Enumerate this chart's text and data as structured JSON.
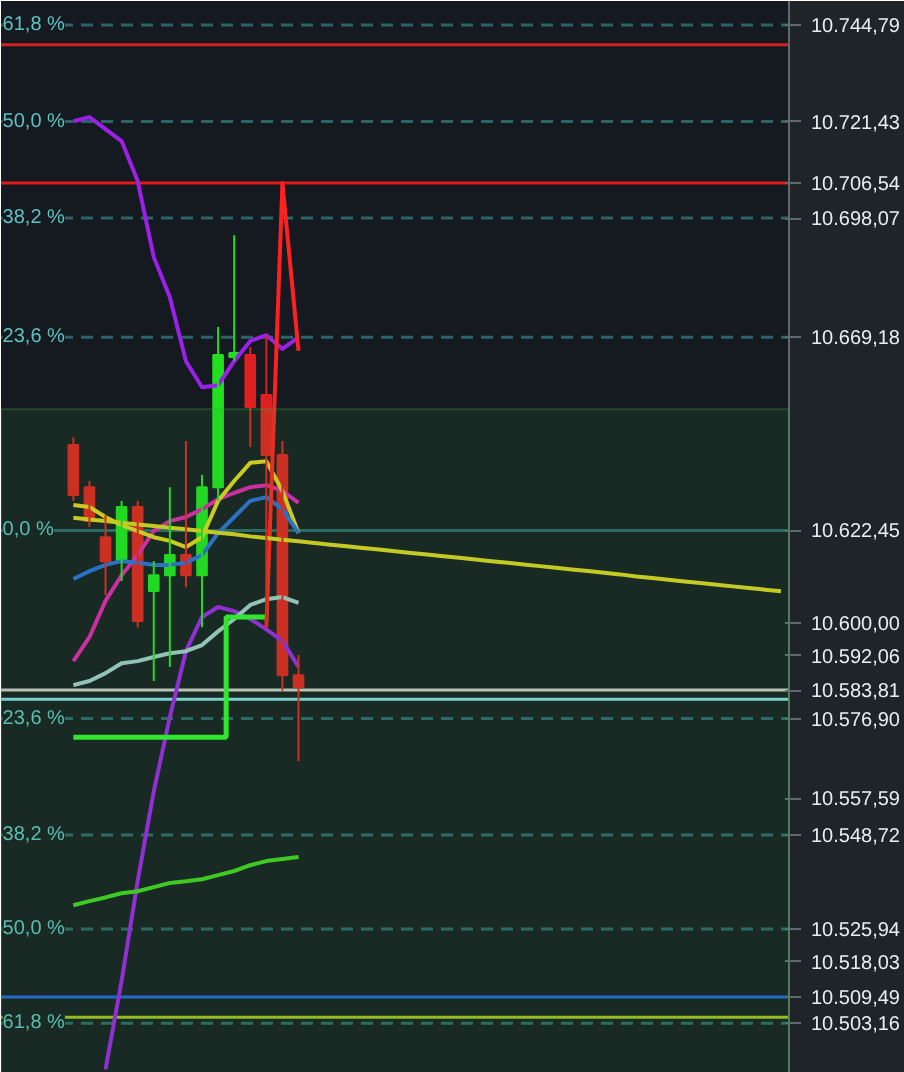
{
  "chart_data": {
    "type": "candlestick",
    "categories": [
      null,
      null,
      null,
      null,
      null,
      null,
      null,
      null,
      null,
      null,
      null,
      null,
      null,
      null,
      null,
      null,
      null,
      null,
      null,
      null,
      null,
      null,
      null,
      null,
      null,
      null,
      null,
      null,
      null,
      null,
      null,
      null,
      null,
      null,
      null,
      null,
      null,
      null,
      null,
      null,
      null,
      null,
      null,
      null,
      null
    ],
    "ohlc": [
      [
        10643.1,
        10645.0,
        10629.6,
        10631.0
      ],
      [
        10632.9,
        10634.4,
        10623.3,
        10624.7
      ],
      [
        10620.8,
        10626.2,
        10606.8,
        10615.0
      ],
      [
        10615.0,
        10629.6,
        10610.2,
        10628.1
      ],
      [
        10628.1,
        10629.6,
        10599.0,
        10600.5
      ],
      [
        10607.8,
        10615.0,
        10586.0,
        10611.6
      ],
      [
        10611.6,
        10632.9,
        10589.4,
        10616.5
      ],
      [
        10616.5,
        10644.1,
        10608.7,
        10611.6
      ],
      [
        10611.6,
        10635.9,
        10599.0,
        10632.9
      ],
      [
        10632.9,
        10671.7,
        10629.6,
        10664.9
      ],
      [
        10664.4,
        10693.9,
        10663.5,
        10665.4
      ],
      [
        10664.9,
        10666.8,
        10642.6,
        10652.3
      ],
      [
        10655.2,
        10669.7,
        10599.0,
        10640.7
      ],
      [
        10640.7,
        10644.1,
        10583.6,
        10587.4
      ],
      [
        10587.4,
        10592.3,
        10566.6,
        10584.5
      ],
      null,
      null,
      null,
      null,
      null,
      null,
      null,
      null,
      null,
      null,
      null,
      null,
      null,
      null,
      null,
      null,
      null,
      null,
      null,
      null,
      null,
      null,
      null,
      null,
      null,
      null,
      null,
      null,
      null,
      null
    ],
    "colors": [
      "#e02020",
      "#e02020",
      "#e02020",
      "#20e020",
      "#e02020",
      "#20e020",
      "#20e020",
      "#e02020",
      "#20e020",
      "#20e020",
      "#20e020",
      "#e02020",
      "#e02020",
      "#e02020",
      "#e02020",
      null,
      null,
      null,
      null,
      null,
      null,
      null,
      null,
      null,
      null,
      null,
      null,
      null,
      null,
      null,
      null,
      null,
      null,
      null,
      null,
      null,
      null,
      null,
      null,
      null,
      null,
      null,
      null,
      null,
      null
    ],
    "series": [
      {
        "type": "line",
        "color": "#9b20e8",
        "values": [
          10721.5,
          10722.5,
          10719.6,
          10716.7,
          10707.0,
          10688.6,
          10678.9,
          10663.4,
          10657.1,
          10657.6,
          10663.4,
          10668.3,
          10669.7,
          10666.4,
          10669.2,
          null,
          null,
          null,
          null,
          null,
          null,
          null,
          null,
          null,
          null,
          null,
          null,
          null,
          null,
          null,
          null,
          null,
          null,
          null,
          null,
          null,
          null,
          null,
          null,
          null,
          null,
          null,
          null,
          null,
          null
        ]
      },
      {
        "type": "line",
        "color": "#9b20e8",
        "values": [
          null,
          null,
          10492.0,
          10513.4,
          10537.6,
          10559.3,
          10577.3,
          10593.2,
          10601.5,
          10603.9,
          10602.9,
          10601.0,
          10598.5,
          10595.7,
          10589.4,
          null,
          null,
          null,
          null,
          null,
          null,
          null,
          null,
          null,
          null,
          null,
          null,
          null,
          null,
          null,
          null,
          null,
          null,
          null,
          null,
          null,
          null,
          null,
          null,
          null,
          null,
          null,
          null,
          null,
          null
        ]
      },
      {
        "type": "line",
        "color": "#e020b0",
        "values": [
          10590.8,
          10596.6,
          10605.4,
          10611.6,
          10616.5,
          10622.3,
          10624.7,
          10625.7,
          10627.6,
          10630.0,
          10631.5,
          10632.9,
          10633.4,
          10632.0,
          10629.1,
          null,
          null,
          null,
          null,
          null,
          null,
          null,
          null,
          null,
          null,
          null,
          null,
          null,
          null,
          null,
          null,
          null,
          null,
          null,
          null,
          null,
          null,
          null,
          null,
          null,
          null,
          null,
          null,
          null,
          null
        ]
      },
      {
        "type": "line",
        "color": "#e0d020",
        "values": [
          10628.6,
          10628.1,
          10625.7,
          10623.7,
          10622.3,
          10620.8,
          10619.9,
          10618.4,
          10620.8,
          10629.6,
          10634.4,
          10638.8,
          10639.2,
          10632.0,
          10621.8,
          null,
          null,
          null,
          null,
          null,
          null,
          null,
          null,
          null,
          null,
          null,
          null,
          null,
          null,
          null,
          null,
          null,
          null,
          null,
          null,
          null,
          null,
          null,
          null,
          null,
          null,
          null,
          null,
          null,
          null
        ]
      },
      {
        "type": "line",
        "color": "#2a6ad8",
        "values": [
          10610.7,
          10612.6,
          10614.1,
          10615.0,
          10614.6,
          10614.1,
          10614.1,
          10614.6,
          10616.5,
          10621.8,
          10625.7,
          10629.6,
          10630.5,
          10627.6,
          10621.8,
          null,
          null,
          null,
          null,
          null,
          null,
          null,
          null,
          null,
          null,
          null,
          null,
          null,
          null,
          null,
          null,
          null,
          null,
          null,
          null,
          null,
          null,
          null,
          null,
          null,
          null,
          null,
          null,
          null,
          null
        ]
      },
      {
        "type": "line",
        "color": "#a0c8c8",
        "values": [
          10585.0,
          10586.0,
          10587.9,
          10590.3,
          10590.8,
          10591.8,
          10592.7,
          10593.2,
          10594.7,
          10598.0,
          10601.0,
          10604.4,
          10605.8,
          10606.3,
          10604.9,
          null,
          null,
          null,
          null,
          null,
          null,
          null,
          null,
          null,
          null,
          null,
          null,
          null,
          null,
          null,
          null,
          null,
          null,
          null,
          null,
          null,
          null,
          null,
          null,
          null,
          null,
          null,
          null,
          null,
          null
        ]
      },
      {
        "type": "step",
        "color": "#30f030",
        "values": [
          10572.4,
          10572.4,
          10572.4,
          10572.4,
          10572.4,
          10572.4,
          10572.4,
          10572.4,
          10572.4,
          10572.4,
          10601.5,
          10601.5,
          10601.5,
          null,
          null,
          null,
          null,
          null,
          null,
          null,
          null,
          null,
          null,
          null,
          null,
          null,
          null,
          null,
          null,
          null,
          null,
          null,
          null,
          null,
          null,
          null,
          null,
          null,
          null,
          null,
          null,
          null,
          null,
          null,
          null
        ]
      },
      {
        "type": "line",
        "color": "#40d020",
        "values": [
          10531.7,
          10532.7,
          10533.6,
          10534.6,
          10535.1,
          10536.1,
          10537.1,
          10537.5,
          10538.0,
          10539.0,
          10540.0,
          10541.4,
          10542.4,
          10542.9,
          10543.4,
          null,
          null,
          null,
          null,
          null,
          null,
          null,
          null,
          null,
          null,
          null,
          null,
          null,
          null,
          null,
          null,
          null,
          null,
          null,
          null,
          null,
          null,
          null,
          null,
          null,
          null,
          null,
          null,
          null,
          null
        ]
      },
      {
        "type": "line",
        "color": "#ff2020",
        "values": [
          null,
          null,
          null,
          null,
          null,
          null,
          null,
          null,
          null,
          null,
          null,
          null,
          10599.0,
          10706.5,
          10665.9,
          null,
          null,
          null,
          null,
          null,
          null,
          null,
          null,
          null,
          null,
          null,
          null,
          null,
          null,
          null,
          null,
          null,
          null,
          null,
          null,
          null,
          null,
          null,
          null,
          null,
          null,
          null,
          null,
          null,
          null
        ]
      },
      {
        "type": "line",
        "color": "#d8d020",
        "values": [
          10625.5,
          10625.1,
          10624.7,
          10624.3,
          10623.9,
          10623.5,
          10623.1,
          10622.7,
          10622.3,
          10621.9,
          10621.5,
          10621.0,
          10620.6,
          10620.2,
          10619.8,
          10619.4,
          10619.0,
          10618.6,
          10618.2,
          10617.8,
          10617.4,
          10617.0,
          10616.6,
          10616.2,
          10615.8,
          10615.4,
          10615.0,
          10614.6,
          10614.2,
          10613.8,
          10613.4,
          10613.0,
          10612.6,
          10612.2,
          10611.8,
          10611.3,
          10610.9,
          10610.5,
          10610.1,
          10609.7,
          10609.3,
          10608.9,
          10608.5,
          10608.1,
          10607.7
        ]
      }
    ],
    "ylim": [
      10491.1,
      10750.6
    ],
    "yticks": [
      {
        "value": 10744.79,
        "label": "10.744,79"
      },
      {
        "value": 10721.43,
        "label": "10.721,43"
      },
      {
        "value": 10706.54,
        "label": "10.706,54"
      },
      {
        "value": 10698.07,
        "label": "10.698,07"
      },
      {
        "value": 10669.18,
        "label": "10.669,18"
      },
      {
        "value": 10622.45,
        "label": "10.622,45"
      },
      {
        "value": 10600.0,
        "label": "10.600,00"
      },
      {
        "value": 10592.06,
        "label": "10.592,06"
      },
      {
        "value": 10583.81,
        "label": "10.583,81"
      },
      {
        "value": 10576.9,
        "label": "10.576,90"
      },
      {
        "value": 10557.59,
        "label": "10.557,59"
      },
      {
        "value": 10548.72,
        "label": "10.548,72"
      },
      {
        "value": 10525.94,
        "label": "10.525,94"
      },
      {
        "value": 10518.03,
        "label": "10.518,03"
      },
      {
        "value": 10509.49,
        "label": "10.509,49"
      },
      {
        "value": 10503.16,
        "label": "10.503,16"
      }
    ],
    "tick_labels": "y",
    "ref_lines": [
      {
        "axis": "y",
        "value": 10744.79,
        "color": "#2a6468",
        "line_style": "dashed"
      },
      {
        "axis": "y",
        "value": 10721.43,
        "color": "#2a6468",
        "line_style": "dashed"
      },
      {
        "axis": "y",
        "value": 10698.07,
        "color": "#2a6468",
        "line_style": "dashed"
      },
      {
        "axis": "y",
        "value": 10669.18,
        "color": "#2a6468",
        "line_style": "dashed"
      },
      {
        "axis": "y",
        "value": 10622.45,
        "color": "#2a6468",
        "line_style": "solid"
      },
      {
        "axis": "y",
        "value": 10576.9,
        "color": "#2a6468",
        "line_style": "dashed"
      },
      {
        "axis": "y",
        "value": 10548.72,
        "color": "#2a6468",
        "line_style": "dashed"
      },
      {
        "axis": "y",
        "value": 10525.94,
        "color": "#2a6468",
        "line_style": "dashed"
      },
      {
        "axis": "y",
        "value": 10503.16,
        "color": "#2a6468",
        "line_style": "dashed"
      },
      {
        "axis": "y",
        "value": 10740.0,
        "color": "#d02020",
        "line_style": "solid"
      },
      {
        "axis": "y",
        "value": 10706.54,
        "color": "#e01818",
        "line_style": "solid"
      },
      {
        "axis": "y",
        "value": 10583.81,
        "color": "#c8c8c8",
        "line_style": "solid"
      },
      {
        "axis": "y",
        "value": 10581.6,
        "color": "#80d8e0",
        "line_style": "solid"
      },
      {
        "axis": "y",
        "value": 10509.49,
        "color": "#2060e0",
        "line_style": "solid"
      },
      {
        "axis": "y",
        "value": 10504.6,
        "color": "#a0c020",
        "line_style": "solid"
      }
    ],
    "annotations": [
      {
        "text": "61,8 %",
        "y": 10744.79
      },
      {
        "text": "50,0 %",
        "y": 10721.43
      },
      {
        "text": "38,2 %",
        "y": 10698.07
      },
      {
        "text": "23,6 %",
        "y": 10669.18
      },
      {
        "text": "0,0 %",
        "y": 10622.45
      },
      {
        "text": "23,6 %",
        "y": 10576.9
      },
      {
        "text": "38,2 %",
        "y": 10548.72
      },
      {
        "text": "50,0 %",
        "y": 10525.94
      },
      {
        "text": "61,8 %",
        "y": 10503.16
      }
    ],
    "bands": [
      {
        "axis": "y",
        "from": 10491.1,
        "to": 10651.8,
        "color": "#3aa83a"
      }
    ],
    "grid": false
  }
}
